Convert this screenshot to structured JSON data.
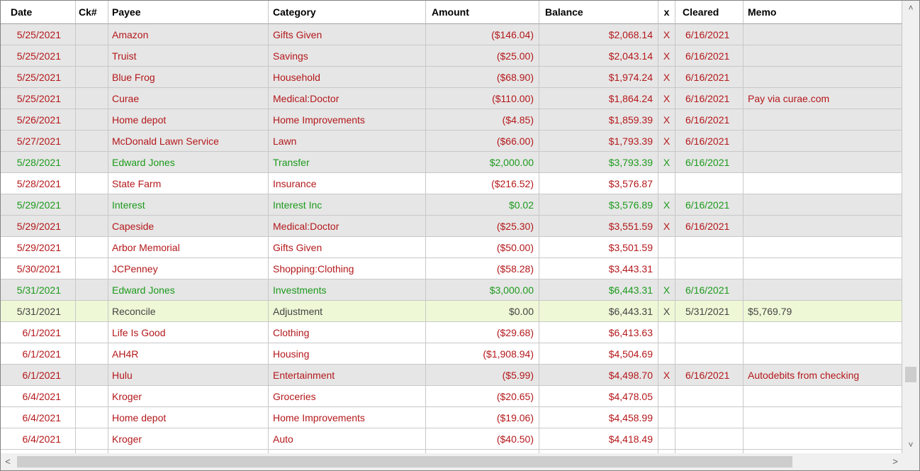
{
  "columns": {
    "date": "Date",
    "ck": "Ck#",
    "payee": "Payee",
    "category": "Category",
    "amount": "Amount",
    "balance": "Balance",
    "x": "x",
    "cleared": "Cleared",
    "memo": "Memo"
  },
  "rows": [
    {
      "date": "5/25/2021",
      "ck": "",
      "payee": "Amazon",
      "category": "Gifts Given",
      "amount": "($146.04)",
      "balance": "$2,068.14",
      "x": "X",
      "cleared": "6/16/2021",
      "memo": "",
      "style": "red",
      "bg": "gray"
    },
    {
      "date": "5/25/2021",
      "ck": "",
      "payee": "Truist",
      "category": "Savings",
      "amount": "($25.00)",
      "balance": "$2,043.14",
      "x": "X",
      "cleared": "6/16/2021",
      "memo": "",
      "style": "red",
      "bg": "gray"
    },
    {
      "date": "5/25/2021",
      "ck": "",
      "payee": "Blue Frog",
      "category": "Household",
      "amount": "($68.90)",
      "balance": "$1,974.24",
      "x": "X",
      "cleared": "6/16/2021",
      "memo": "",
      "style": "red",
      "bg": "gray"
    },
    {
      "date": "5/25/2021",
      "ck": "",
      "payee": "Curae",
      "category": "Medical:Doctor",
      "amount": "($110.00)",
      "balance": "$1,864.24",
      "x": "X",
      "cleared": "6/16/2021",
      "memo": "Pay via curae.com",
      "style": "red",
      "bg": "gray"
    },
    {
      "date": "5/26/2021",
      "ck": "",
      "payee": "Home depot",
      "category": "Home Improvements",
      "amount": "($4.85)",
      "balance": "$1,859.39",
      "x": "X",
      "cleared": "6/16/2021",
      "memo": "",
      "style": "red",
      "bg": "gray"
    },
    {
      "date": "5/27/2021",
      "ck": "",
      "payee": "McDonald Lawn Service",
      "category": "Lawn",
      "amount": "($66.00)",
      "balance": "$1,793.39",
      "x": "X",
      "cleared": "6/16/2021",
      "memo": "",
      "style": "red",
      "bg": "gray"
    },
    {
      "date": "5/28/2021",
      "ck": "",
      "payee": "Edward Jones",
      "category": "Transfer",
      "amount": "$2,000.00",
      "balance": "$3,793.39",
      "x": "X",
      "cleared": "6/16/2021",
      "memo": "",
      "style": "green",
      "bg": "gray"
    },
    {
      "date": "5/28/2021",
      "ck": "",
      "payee": "State Farm",
      "category": "Insurance",
      "amount": "($216.52)",
      "balance": "$3,576.87",
      "x": "",
      "cleared": "",
      "memo": "",
      "style": "red",
      "bg": "white"
    },
    {
      "date": "5/29/2021",
      "ck": "",
      "payee": "Interest",
      "category": "Interest Inc",
      "amount": "$0.02",
      "balance": "$3,576.89",
      "x": "X",
      "cleared": "6/16/2021",
      "memo": "",
      "style": "green",
      "bg": "gray"
    },
    {
      "date": "5/29/2021",
      "ck": "",
      "payee": "Capeside",
      "category": "Medical:Doctor",
      "amount": "($25.30)",
      "balance": "$3,551.59",
      "x": "X",
      "cleared": "6/16/2021",
      "memo": "",
      "style": "red",
      "bg": "gray"
    },
    {
      "date": "5/29/2021",
      "ck": "",
      "payee": "Arbor Memorial",
      "category": "Gifts Given",
      "amount": "($50.00)",
      "balance": "$3,501.59",
      "x": "",
      "cleared": "",
      "memo": "",
      "style": "red",
      "bg": "white"
    },
    {
      "date": "5/30/2021",
      "ck": "",
      "payee": "JCPenney",
      "category": "Shopping:Clothing",
      "amount": "($58.28)",
      "balance": "$3,443.31",
      "x": "",
      "cleared": "",
      "memo": "",
      "style": "red",
      "bg": "white"
    },
    {
      "date": "5/31/2021",
      "ck": "",
      "payee": "Edward Jones",
      "category": "Investments",
      "amount": "$3,000.00",
      "balance": "$6,443.31",
      "x": "X",
      "cleared": "6/16/2021",
      "memo": "",
      "style": "green",
      "bg": "gray"
    },
    {
      "date": "5/31/2021",
      "ck": "",
      "payee": "Reconcile",
      "category": "Adjustment",
      "amount": "$0.00",
      "balance": "$6,443.31",
      "x": "X",
      "cleared": "5/31/2021",
      "memo": "$5,769.79",
      "style": "recon",
      "bg": "recon"
    },
    {
      "date": "6/1/2021",
      "ck": "",
      "payee": "Life Is Good",
      "category": "Clothing",
      "amount": "($29.68)",
      "balance": "$6,413.63",
      "x": "",
      "cleared": "",
      "memo": "",
      "style": "red",
      "bg": "white"
    },
    {
      "date": "6/1/2021",
      "ck": "",
      "payee": "AH4R",
      "category": "Housing",
      "amount": "($1,908.94)",
      "balance": "$4,504.69",
      "x": "",
      "cleared": "",
      "memo": "",
      "style": "red",
      "bg": "white"
    },
    {
      "date": "6/1/2021",
      "ck": "",
      "payee": "Hulu",
      "category": "Entertainment",
      "amount": "($5.99)",
      "balance": "$4,498.70",
      "x": "X",
      "cleared": "6/16/2021",
      "memo": "Autodebits from checking",
      "style": "red",
      "bg": "gray"
    },
    {
      "date": "6/4/2021",
      "ck": "",
      "payee": "Kroger",
      "category": "Groceries",
      "amount": "($20.65)",
      "balance": "$4,478.05",
      "x": "",
      "cleared": "",
      "memo": "",
      "style": "red",
      "bg": "white"
    },
    {
      "date": "6/4/2021",
      "ck": "",
      "payee": "Home depot",
      "category": "Home Improvements",
      "amount": "($19.06)",
      "balance": "$4,458.99",
      "x": "",
      "cleared": "",
      "memo": "",
      "style": "red",
      "bg": "white"
    },
    {
      "date": "6/4/2021",
      "ck": "",
      "payee": "Kroger",
      "category": "Auto",
      "amount": "($40.50)",
      "balance": "$4,418.49",
      "x": "",
      "cleared": "",
      "memo": "",
      "style": "red",
      "bg": "white"
    },
    {
      "date": "",
      "ck": "",
      "payee": "",
      "category": "",
      "amount": "",
      "balance": "",
      "x": "",
      "cleared": "",
      "memo": "",
      "style": "red",
      "bg": "white"
    }
  ],
  "scrollbars": {
    "up_icon": "chevron-up-icon",
    "down_icon": "chevron-down-icon",
    "left_icon": "chevron-left-icon",
    "right_icon": "chevron-right-icon",
    "up_glyph": "˄",
    "down_glyph": "˅",
    "left_glyph": "<",
    "right_glyph": ">"
  },
  "colors": {
    "expense": "#b4181b",
    "income": "#1c9a1c",
    "reconcile_bg": "#eef8d6",
    "cleared_bg": "#e6e6e6"
  }
}
